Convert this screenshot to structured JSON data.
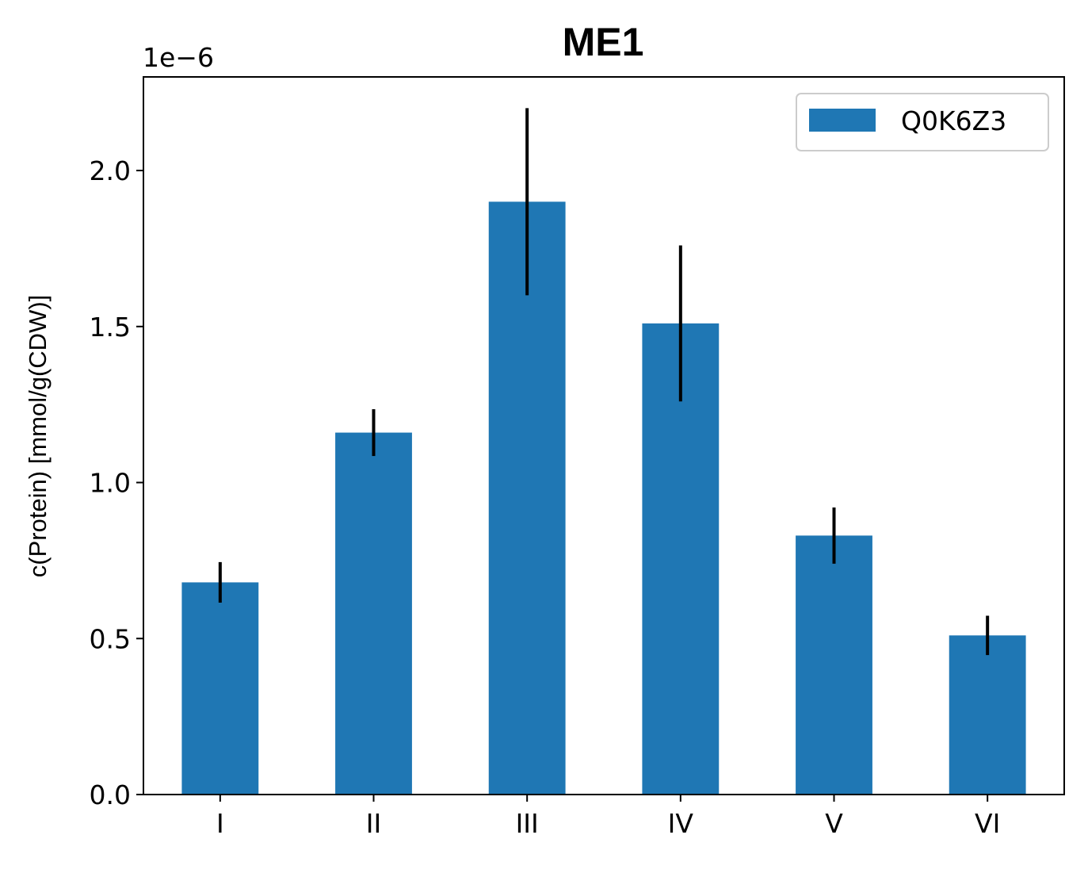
{
  "chart_data": {
    "type": "bar",
    "title": "ME1",
    "xlabel": "",
    "ylabel": "c(Protein) [mmol/g(CDW)]",
    "y_offset_text": "1e−6",
    "categories": [
      "I",
      "II",
      "III",
      "IV",
      "V",
      "VI"
    ],
    "series": [
      {
        "name": "Q0K6Z3",
        "color": "#1f77b4",
        "values": [
          0.68,
          1.16,
          1.9,
          1.51,
          0.83,
          0.51
        ],
        "errors": [
          0.065,
          0.075,
          0.3,
          0.25,
          0.09,
          0.063
        ]
      }
    ],
    "error_bar_color": "#000000",
    "ylim": [
      0,
      2.3
    ],
    "yticks": [
      0.0,
      0.5,
      1.0,
      1.5,
      2.0
    ],
    "ytick_labels": [
      "0.0",
      "0.5",
      "1.0",
      "1.5",
      "2.0"
    ],
    "y_scale_factor": "1e-6",
    "grid": false,
    "legend_position": "top-right"
  }
}
